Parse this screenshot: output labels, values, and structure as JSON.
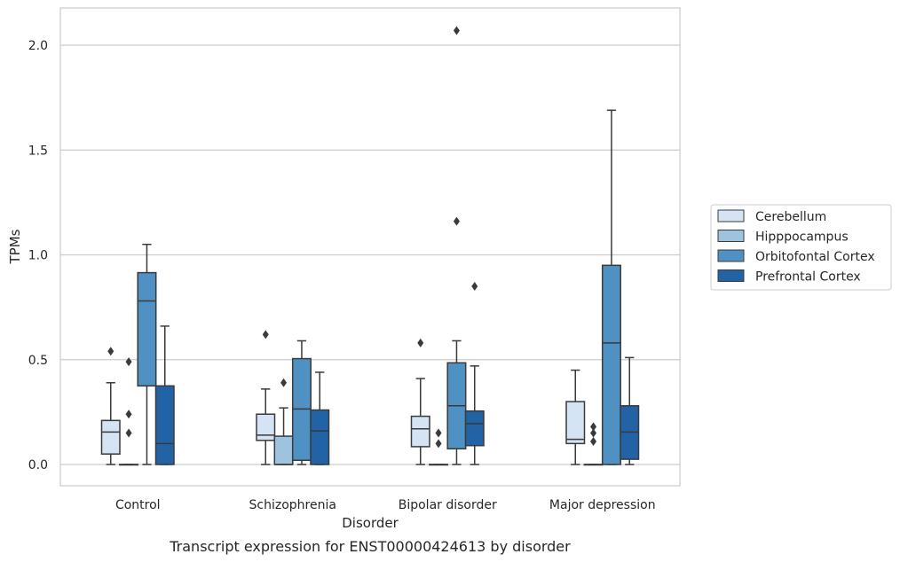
{
  "chart_data": {
    "type": "box",
    "caption": "Transcript expression for ENST00000424613 by disorder",
    "xlabel": "Disorder",
    "ylabel": "TPMs",
    "ylim": [
      -0.1,
      2.18
    ],
    "yticks": [
      0.0,
      0.5,
      1.0,
      1.5,
      2.0
    ],
    "ytick_labels": [
      "0.0",
      "0.5",
      "1.0",
      "1.5",
      "2.0"
    ],
    "grid": true,
    "legend_position": "right",
    "categories": [
      "Control",
      "Schizophrenia",
      "Bipolar disorder",
      "Major depression"
    ],
    "series": [
      {
        "name": "Cerebellum",
        "color": "#d4e4f4",
        "boxes": [
          {
            "whislo": 0.0,
            "q1": 0.05,
            "med": 0.155,
            "q3": 0.21,
            "whishi": 0.39,
            "fliers": [
              0.54
            ]
          },
          {
            "whislo": 0.0,
            "q1": 0.115,
            "med": 0.14,
            "q3": 0.24,
            "whishi": 0.36,
            "fliers": [
              0.62
            ]
          },
          {
            "whislo": 0.0,
            "q1": 0.085,
            "med": 0.17,
            "q3": 0.23,
            "whishi": 0.41,
            "fliers": [
              0.58
            ]
          },
          {
            "whislo": 0.0,
            "q1": 0.1,
            "med": 0.12,
            "q3": 0.3,
            "whishi": 0.45,
            "fliers": []
          }
        ]
      },
      {
        "name": "Hipppocampus",
        "color": "#9dc3df",
        "boxes": [
          {
            "whislo": 0.0,
            "q1": 0.0,
            "med": 0.0,
            "q3": 0.0,
            "whishi": 0.0,
            "fliers": [
              0.49,
              0.24,
              0.15
            ]
          },
          {
            "whislo": 0.0,
            "q1": 0.0,
            "med": 0.0,
            "q3": 0.135,
            "whishi": 0.27,
            "fliers": [
              0.39
            ]
          },
          {
            "whislo": 0.0,
            "q1": 0.0,
            "med": 0.0,
            "q3": 0.0,
            "whishi": 0.0,
            "fliers": [
              0.15,
              0.1
            ]
          },
          {
            "whislo": 0.0,
            "q1": 0.0,
            "med": 0.0,
            "q3": 0.0,
            "whishi": 0.0,
            "fliers": [
              0.18,
              0.15,
              0.11
            ]
          }
        ]
      },
      {
        "name": "Orbitofontal Cortex",
        "color": "#4f91c3",
        "boxes": [
          {
            "whislo": 0.0,
            "q1": 0.375,
            "med": 0.78,
            "q3": 0.915,
            "whishi": 1.05,
            "fliers": []
          },
          {
            "whislo": 0.0,
            "q1": 0.02,
            "med": 0.265,
            "q3": 0.505,
            "whishi": 0.59,
            "fliers": []
          },
          {
            "whislo": 0.0,
            "q1": 0.075,
            "med": 0.28,
            "q3": 0.485,
            "whishi": 0.59,
            "fliers": [
              2.07,
              1.16
            ]
          },
          {
            "whislo": 0.0,
            "q1": 0.0,
            "med": 0.58,
            "q3": 0.95,
            "whishi": 1.69,
            "fliers": []
          }
        ]
      },
      {
        "name": "Prefrontal Cortex",
        "color": "#2263a6",
        "boxes": [
          {
            "whislo": 0.0,
            "q1": 0.0,
            "med": 0.1,
            "q3": 0.375,
            "whishi": 0.66,
            "fliers": []
          },
          {
            "whislo": 0.0,
            "q1": 0.0,
            "med": 0.16,
            "q3": 0.26,
            "whishi": 0.44,
            "fliers": []
          },
          {
            "whislo": 0.0,
            "q1": 0.09,
            "med": 0.195,
            "q3": 0.255,
            "whishi": 0.47,
            "fliers": [
              0.85
            ]
          },
          {
            "whislo": 0.0,
            "q1": 0.025,
            "med": 0.155,
            "q3": 0.28,
            "whishi": 0.51,
            "fliers": []
          }
        ]
      }
    ]
  }
}
